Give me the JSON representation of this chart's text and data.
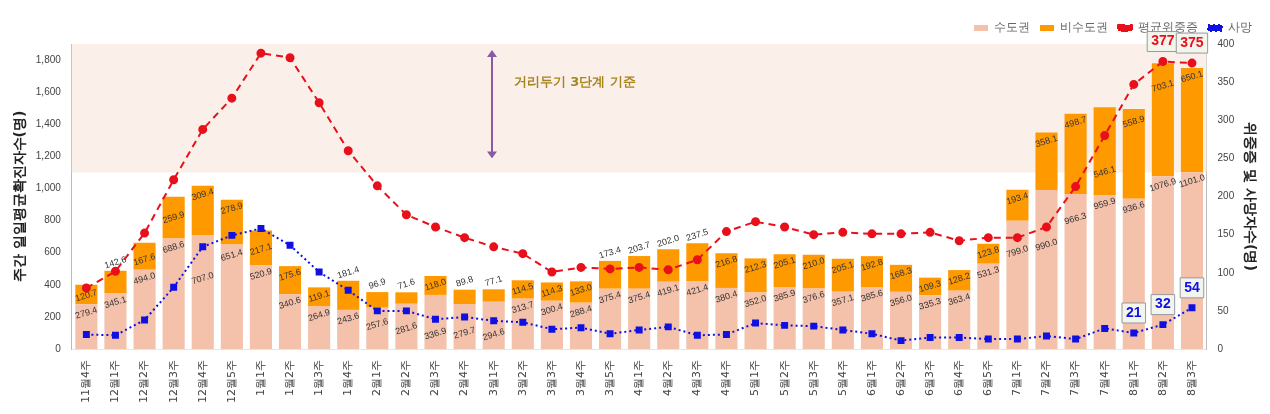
{
  "chart_data": {
    "type": "bar",
    "stacked": true,
    "ylabel": "주간 일일평균확진자수(명)",
    "y2label": "위중증 및 사망자수(명)",
    "categories": [
      "11월4주",
      "12월1주",
      "12월2주",
      "12월3주",
      "12월4주",
      "12월5주",
      "1월1주",
      "1월2주",
      "1월3주",
      "1월4주",
      "2월1주",
      "2월2주",
      "2월3주",
      "2월4주",
      "3월1주",
      "3월2주",
      "3월3주",
      "3월4주",
      "3월5주",
      "4월1주",
      "4월2주",
      "4월3주",
      "4월4주",
      "5월1주",
      "5월2주",
      "5월3주",
      "5월4주",
      "6월1주",
      "6월2주",
      "6월3주",
      "6월4주",
      "6월5주",
      "7월1주",
      "7월2주",
      "7월3주",
      "7월4주",
      "8월1주",
      "8월2주",
      "8월3주"
    ],
    "series": [
      {
        "name": "수도권",
        "color": "#f4c1ab",
        "values": [
          279.4,
          345.1,
          494.0,
          688.6,
          707.0,
          651.4,
          520.9,
          340.6,
          264.9,
          243.6,
          257.6,
          281.6,
          336.9,
          279.7,
          294.6,
          313.7,
          300.4,
          288.4,
          375.4,
          375.4,
          419.1,
          421.4,
          380.4,
          352.0,
          385.9,
          376.6,
          357.1,
          385.6,
          356.0,
          335.3,
          363.4,
          531.3,
          799.0,
          990.0,
          966.3,
          959.9,
          936.6,
          1076.9,
          1101.0
        ],
        "value_labels": [
          "279.4",
          "345.1",
          "494.0",
          "688.6",
          "707.0",
          "651.4",
          "520.9",
          "340.6",
          "264.9",
          "243.6",
          "257.6",
          "281.6",
          "336.9",
          "279.7",
          "294.6",
          "313.7",
          "300.4",
          "288.4",
          "375.4",
          "375.4",
          "419.1",
          "421.4",
          "380.4",
          "352.0",
          "385.9",
          "376.6",
          "357.1",
          "385.6",
          "356.0",
          "335.3",
          "363.4",
          "531.3",
          "799.0",
          "990.0",
          "966.3",
          "959.9",
          "936.6",
          "1076.9",
          "1101.0"
        ]
      },
      {
        "name": "비수도권",
        "color": "#ff9900",
        "values": [
          120.7,
          142.6,
          167.6,
          259.9,
          309.4,
          278.9,
          217.1,
          175.6,
          119.1,
          181.4,
          96.9,
          71.6,
          118.0,
          89.8,
          77.1,
          114.5,
          114.3,
          133.0,
          173.4,
          203.7,
          202.0,
          237.5,
          216.8,
          212.3,
          205.1,
          210.0,
          205.1,
          192.8,
          168.3,
          109.3,
          128.2,
          123.8,
          193.4,
          358.1,
          498.7,
          546.1,
          558.9,
          703.1,
          650.1
        ],
        "value_labels": [
          "120.7",
          "142.6",
          "167.6",
          "259.9",
          "309.4",
          "278.9",
          "217.1",
          "175.6",
          "119.1",
          "181.4",
          "96.9",
          "71.6",
          "118.0",
          "89.8",
          "77.1",
          "114.5",
          "114.3",
          "133.0",
          "173.4",
          "203.7",
          "202.0",
          "237.5",
          "216.8",
          "212.3",
          "205.1",
          "210.0",
          "205.1",
          "192.8",
          "168.3",
          "109.3",
          "128.2",
          "123.8",
          "193.4",
          "358.1",
          "498.7",
          "546.1",
          "558.9",
          "703.1",
          "650.1"
        ]
      },
      {
        "name": "평균위중증",
        "type": "line",
        "axis": "y2",
        "color": "#e8101a",
        "marker": "circle",
        "line_style": "dashed",
        "values": [
          80,
          102,
          152,
          222,
          288,
          329,
          388,
          382,
          323,
          260,
          214,
          176,
          160,
          146,
          134,
          125,
          101,
          107,
          105,
          107,
          104,
          117,
          154,
          167,
          160,
          150,
          153,
          151,
          151,
          153,
          142,
          146,
          146,
          160,
          213,
          280,
          347,
          377,
          375
        ],
        "value_labels": [
          null,
          null,
          null,
          null,
          null,
          null,
          null,
          null,
          null,
          null,
          null,
          null,
          null,
          null,
          null,
          null,
          null,
          null,
          null,
          null,
          null,
          null,
          null,
          null,
          null,
          null,
          null,
          null,
          null,
          null,
          null,
          null,
          null,
          null,
          null,
          null,
          null,
          "377",
          "375"
        ]
      },
      {
        "name": "사망",
        "type": "line",
        "axis": "y2",
        "color": "#1010e0",
        "marker": "square",
        "line_style": "dotted",
        "values": [
          19,
          18,
          38,
          81,
          134,
          149,
          158,
          136,
          101,
          77,
          50,
          50,
          39,
          42,
          37,
          35,
          26,
          28,
          20,
          25,
          29,
          18,
          19,
          34,
          31,
          30,
          25,
          20,
          11,
          15,
          15,
          13,
          13,
          17,
          13,
          27,
          21,
          32,
          54
        ],
        "value_labels": [
          null,
          null,
          null,
          null,
          null,
          null,
          null,
          null,
          null,
          null,
          null,
          null,
          null,
          null,
          null,
          null,
          null,
          null,
          null,
          null,
          null,
          null,
          null,
          null,
          null,
          null,
          null,
          null,
          null,
          null,
          null,
          null,
          null,
          null,
          null,
          null,
          "21",
          "32",
          "54"
        ]
      }
    ],
    "ylim": [
      0,
      1900
    ],
    "yticks": [
      0,
      200,
      400,
      600,
      800,
      {
        "value": 1000,
        "label": "1,000"
      },
      {
        "value": 1200,
        "label": "1,200"
      },
      {
        "value": 1400,
        "label": "1,400"
      },
      {
        "value": 1600,
        "label": "1,600"
      },
      {
        "value": 1800,
        "label": "1,800"
      }
    ],
    "y2lim": [
      0,
      400
    ],
    "y2ticks": [
      0,
      50,
      100,
      150,
      200,
      250,
      300,
      350,
      400
    ],
    "bands": [
      {
        "axis": "y",
        "from": 1100,
        "to": 1900,
        "label": "거리두기 3단계 기준",
        "color": "#fbefea"
      }
    ],
    "grid": false,
    "legend": "top right"
  }
}
